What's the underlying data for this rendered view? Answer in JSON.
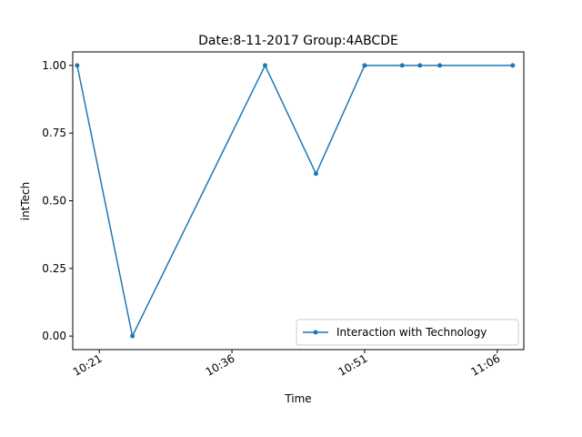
{
  "chart_data": {
    "type": "line",
    "title": "Date:8-11-2017  Group:4ABCDE",
    "xlabel": "Time",
    "ylabel": "intTech",
    "x_range": [
      "10:18:00",
      "11:09:00"
    ],
    "ylim": [
      -0.05,
      1.05
    ],
    "x_ticks": [
      {
        "time": "10:21",
        "label": "10:21"
      },
      {
        "time": "10:36",
        "label": "10:36"
      },
      {
        "time": "10:51",
        "label": "10:51"
      },
      {
        "time": "11:06",
        "label": "11:06"
      }
    ],
    "y_ticks": [
      {
        "value": 0.0,
        "label": "0.00"
      },
      {
        "value": 0.25,
        "label": "0.25"
      },
      {
        "value": 0.5,
        "label": "0.50"
      },
      {
        "value": 0.75,
        "label": "0.75"
      },
      {
        "value": 1.0,
        "label": "1.00"
      }
    ],
    "grid": false,
    "legend_position": "lower-right",
    "series": [
      {
        "name": "Interaction with Technology",
        "color": "#1f77b4",
        "marker": "point",
        "x": [
          "10:18:30",
          "10:24:45",
          "10:39:45",
          "10:45:30",
          "10:51:00",
          "10:55:15",
          "10:57:15",
          "10:59:30",
          "11:07:45"
        ],
        "y": [
          1.0,
          0.0,
          1.0,
          0.6,
          1.0,
          1.0,
          1.0,
          1.0,
          1.0
        ]
      }
    ]
  }
}
